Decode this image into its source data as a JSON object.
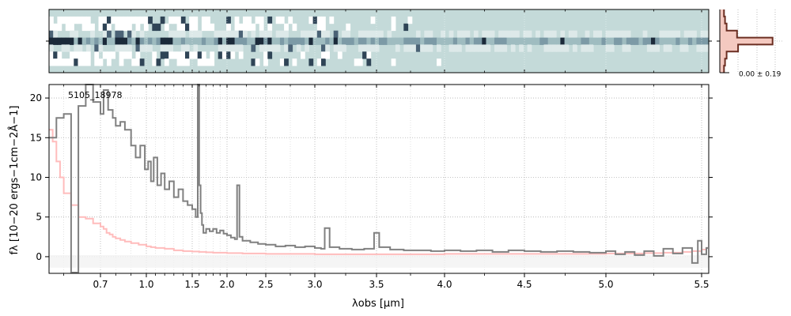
{
  "chart_data": [
    {
      "type": "heatmap",
      "panel": "2d-spectrum",
      "description_colormap": [
        "#ffffff",
        "#c4dad9",
        "#1b2a3a"
      ],
      "xlim_um": [
        0.56,
        5.53
      ],
      "rows": 9,
      "trace_row": 4
    },
    {
      "type": "line",
      "panel": "1d-spectrum",
      "object_label": "5105_18978",
      "xlabel": "λobs [μm]",
      "ylabel": "fλ [10−20 ergs−1cm−2Å−1]",
      "x_ticks": [
        "0.7",
        "1.0",
        "1.5",
        "2.0",
        "2.5",
        "3.0",
        "3.5",
        "4.0",
        "4.5",
        "5.0",
        "5.5"
      ],
      "y_ticks": [
        "0",
        "5",
        "10",
        "15",
        "20"
      ],
      "ylim": [
        -2.1,
        21.7
      ],
      "xlim_um": [
        0.56,
        5.53
      ],
      "grid": true,
      "series": [
        {
          "role": "flux",
          "color": "#808080",
          "x": [
            0.56,
            0.58,
            0.6,
            0.62,
            0.64,
            0.66,
            0.68,
            0.7,
            0.72,
            0.75,
            0.78,
            0.8,
            0.83,
            0.86,
            0.9,
            0.93,
            0.96,
            0.99,
            1.02,
            1.05,
            1.08,
            1.12,
            1.16,
            1.2,
            1.25,
            1.3,
            1.35,
            1.4,
            1.45,
            1.5,
            1.55,
            1.58,
            1.6,
            1.62,
            1.64,
            1.66,
            1.7,
            1.75,
            1.8,
            1.85,
            1.9,
            1.95,
            2.0,
            2.05,
            2.1,
            2.13,
            2.16,
            2.2,
            2.3,
            2.4,
            2.5,
            2.6,
            2.7,
            2.8,
            2.9,
            3.0,
            3.05,
            3.08,
            3.12,
            3.2,
            3.3,
            3.4,
            3.45,
            3.48,
            3.52,
            3.6,
            3.7,
            3.8,
            3.9,
            4.0,
            4.1,
            4.2,
            4.3,
            4.4,
            4.5,
            4.6,
            4.7,
            4.8,
            4.9,
            5.0,
            5.05,
            5.1,
            5.15,
            5.2,
            5.25,
            5.3,
            5.35,
            5.4,
            5.45,
            5.48,
            5.5,
            5.52
          ],
          "y": [
            15.0,
            17.5,
            18.0,
            -2.0,
            19.0,
            22.0,
            19.5,
            18.0,
            21.0,
            18.5,
            17.5,
            16.5,
            17.0,
            16.0,
            14.0,
            12.5,
            14.0,
            11.0,
            12.0,
            9.5,
            12.5,
            9.0,
            10.5,
            8.5,
            9.5,
            7.5,
            8.5,
            7.0,
            6.5,
            6.0,
            5.0,
            21.7,
            9.0,
            5.5,
            4.0,
            3.0,
            3.5,
            3.2,
            3.5,
            3.0,
            3.3,
            2.9,
            2.7,
            2.4,
            2.2,
            9.0,
            2.5,
            2.0,
            1.8,
            1.6,
            1.5,
            1.3,
            1.4,
            1.2,
            1.3,
            1.1,
            1.0,
            3.6,
            1.2,
            1.0,
            0.9,
            1.0,
            1.0,
            3.0,
            1.2,
            0.9,
            0.8,
            0.8,
            0.7,
            0.8,
            0.7,
            0.8,
            0.6,
            0.8,
            0.7,
            0.6,
            0.7,
            0.6,
            0.5,
            0.7,
            0.3,
            0.6,
            0.2,
            0.7,
            0.1,
            1.0,
            0.4,
            1.1,
            -0.8,
            2.0,
            0.3,
            1.1
          ]
        },
        {
          "role": "error",
          "color": "#ffbcbc",
          "x": [
            0.56,
            0.57,
            0.58,
            0.59,
            0.6,
            0.62,
            0.64,
            0.66,
            0.68,
            0.7,
            0.72,
            0.74,
            0.76,
            0.78,
            0.8,
            0.83,
            0.86,
            0.9,
            0.95,
            1.0,
            1.05,
            1.1,
            1.2,
            1.3,
            1.4,
            1.5,
            1.6,
            1.7,
            1.8,
            2.0,
            2.2,
            2.5,
            2.8,
            3.0,
            3.5,
            4.0,
            4.5,
            5.0,
            5.2,
            5.3,
            5.4,
            5.45,
            5.5,
            5.52
          ],
          "y": [
            16.0,
            14.5,
            12.0,
            10.0,
            8.0,
            6.5,
            5.0,
            4.8,
            4.2,
            3.8,
            3.5,
            3.0,
            2.8,
            2.5,
            2.3,
            2.1,
            1.9,
            1.7,
            1.5,
            1.3,
            1.2,
            1.1,
            1.0,
            0.8,
            0.7,
            0.65,
            0.6,
            0.55,
            0.5,
            0.45,
            0.4,
            0.35,
            0.35,
            0.3,
            0.3,
            0.35,
            0.35,
            0.4,
            0.45,
            0.5,
            0.6,
            0.7,
            0.9,
            1.1
          ]
        }
      ]
    },
    {
      "type": "line",
      "panel": "cross-dispersion-profile",
      "annotation": "0.00 ± 0.19",
      "color": "#6b2e22",
      "y_rows": [
        0,
        1,
        2,
        3,
        4,
        5,
        6,
        7,
        8
      ],
      "profile": [
        0.05,
        0.07,
        0.1,
        0.3,
        0.98,
        0.32,
        0.1,
        0.07,
        0.05
      ]
    }
  ]
}
